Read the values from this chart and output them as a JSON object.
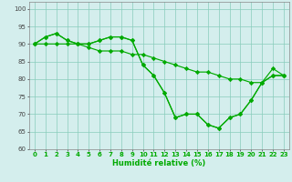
{
  "x": [
    0,
    1,
    2,
    3,
    4,
    5,
    6,
    7,
    8,
    9,
    10,
    11,
    12,
    13,
    14,
    15,
    16,
    17,
    18,
    19,
    20,
    21,
    22,
    23
  ],
  "line1": [
    90,
    92,
    93,
    91,
    90,
    90,
    91,
    92,
    92,
    91,
    84,
    81,
    76,
    69,
    70,
    70,
    67,
    66,
    69,
    70,
    74,
    79,
    81,
    81
  ],
  "line2": [
    90,
    92,
    93,
    91,
    90,
    90,
    91,
    92,
    92,
    91,
    84,
    81,
    76,
    69,
    70,
    70,
    67,
    66,
    69,
    70,
    74,
    79,
    81,
    81
  ],
  "line3": [
    90,
    90,
    90,
    90,
    90,
    89,
    88,
    88,
    88,
    87,
    87,
    86,
    85,
    84,
    83,
    82,
    82,
    81,
    80,
    80,
    79,
    79,
    83,
    81
  ],
  "background": "#d4eeed",
  "grid_color": "#88ccbb",
  "line_color": "#00aa00",
  "marker": "D",
  "markersize": 2.2,
  "linewidth": 0.85,
  "xlabel": "Humidité relative (%)",
  "ylim": [
    60,
    102
  ],
  "xlim": [
    -0.5,
    23.5
  ],
  "yticks": [
    60,
    65,
    70,
    75,
    80,
    85,
    90,
    95,
    100
  ],
  "xticks": [
    0,
    1,
    2,
    3,
    4,
    5,
    6,
    7,
    8,
    9,
    10,
    11,
    12,
    13,
    14,
    15,
    16,
    17,
    18,
    19,
    20,
    21,
    22,
    23
  ],
  "xlabel_fontsize": 6.0,
  "tick_fontsize": 5.0
}
